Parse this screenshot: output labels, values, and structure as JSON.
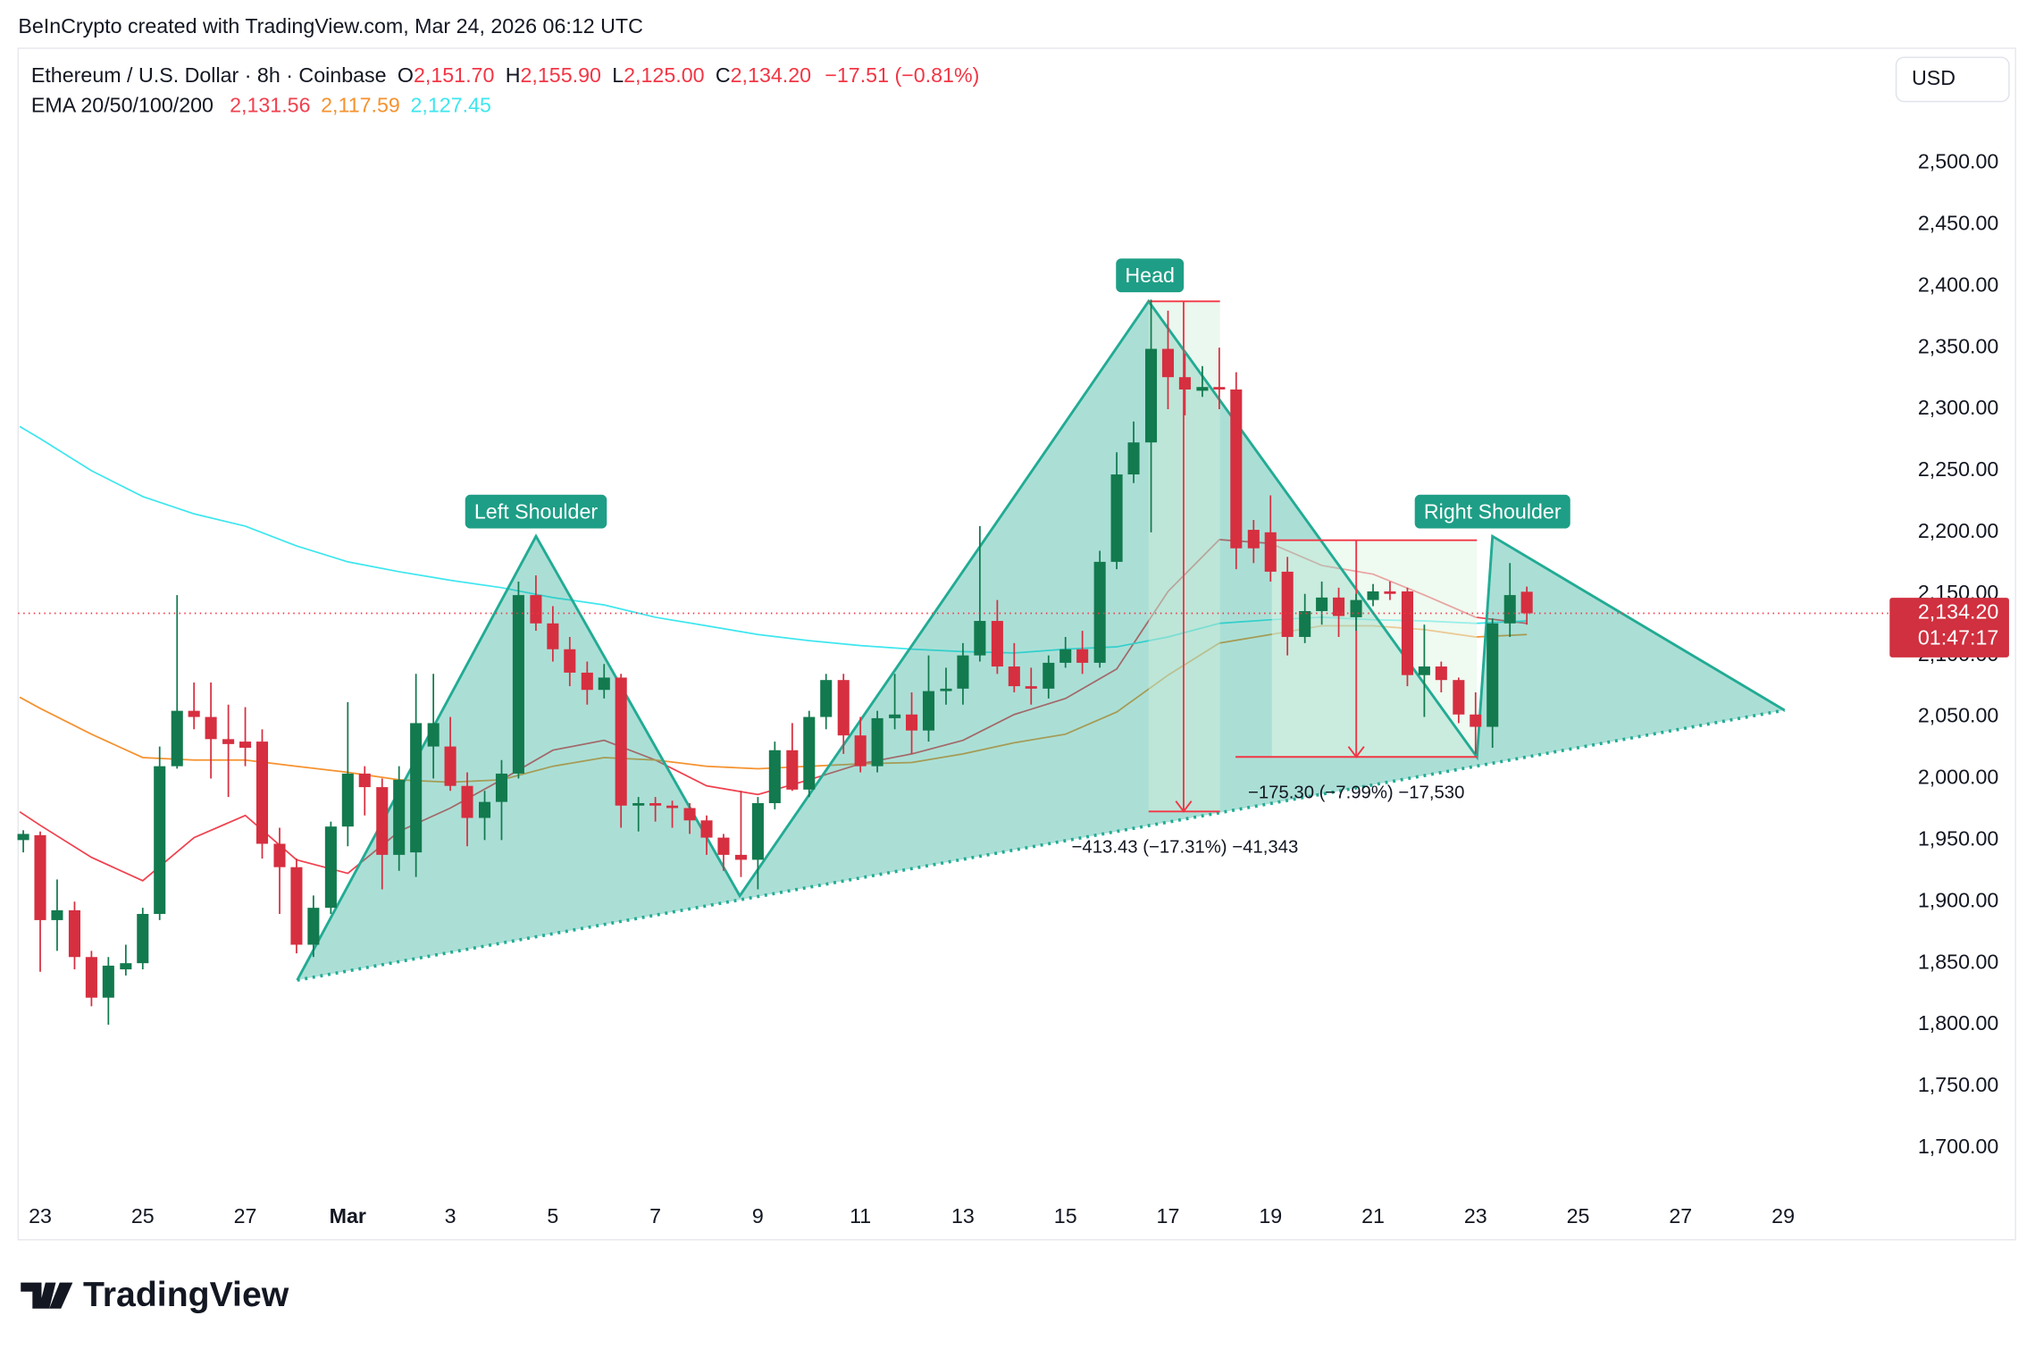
{
  "chart_data": {
    "type": "candlestick",
    "attribution": "BeInCrypto created with TradingView.com, Mar 24, 2026 06:12 UTC",
    "symbol": "Ethereum / U.S. Dollar · 8h · Coinbase",
    "ohlc": [
      {
        "key": "O",
        "value": "2,151.70"
      },
      {
        "key": "H",
        "value": "2,155.90"
      },
      {
        "key": "L",
        "value": "2,125.00"
      },
      {
        "key": "C",
        "value": "2,134.20"
      }
    ],
    "change": "−17.51 (−0.81%)",
    "currency": "USD",
    "brand": "TradingView",
    "up_color": "#127a4e",
    "down_color": "#d62f40",
    "x": [
      -0.33,
      0,
      0.33,
      0.67,
      1,
      1.33,
      1.67,
      2,
      2.33,
      2.67,
      3,
      3.33,
      3.67,
      4,
      4.33,
      4.67,
      5,
      5.33,
      5.67,
      6,
      6.33,
      6.67,
      7,
      7.33,
      7.67,
      8,
      8.33,
      8.67,
      9,
      9.33,
      9.67,
      10,
      10.33,
      10.67,
      11,
      11.33,
      11.67,
      12,
      12.33,
      12.67,
      13,
      13.33,
      13.67,
      14,
      14.33,
      14.67,
      15,
      15.33,
      15.67,
      16,
      16.33,
      16.67,
      17,
      17.33,
      17.67,
      18,
      18.33,
      18.67,
      19,
      19.33,
      19.67,
      20,
      20.33,
      20.67,
      21,
      21.33,
      21.67,
      22,
      22.33,
      22.67,
      23,
      23.33,
      23.67,
      24,
      24.33,
      24.67,
      25,
      25.33,
      25.67,
      26,
      26.33,
      26.67,
      27,
      27.33,
      27.67,
      28,
      28.33,
      28.67,
      29
    ],
    "open": [
      1950,
      1954,
      1885,
      1893,
      1855,
      1822,
      1845,
      1850,
      1890,
      2010,
      2055,
      2050,
      2032,
      2030,
      2030,
      1947,
      1928,
      1865,
      1895,
      1961,
      2004,
      1993,
      1938,
      1940,
      2026,
      2026,
      1994,
      1968,
      1981,
      2004,
      2149,
      2126,
      2105,
      2086,
      2072,
      2082,
      1978,
      1980,
      1978,
      1976,
      1966,
      1952,
      1938,
      1934,
      1980,
      2023,
      1991,
      2050,
      2080,
      2035,
      2010,
      2049,
      2052,
      2039,
      2071,
      2073,
      2100,
      2128,
      2091,
      2075,
      2073,
      2094,
      2105,
      2094,
      2176,
      2247,
      2273,
      2349,
      2326,
      2315,
      2318,
      2316,
      2202,
      2200,
      2168,
      2115,
      2136,
      2147,
      2131,
      2145,
      2152,
      2152,
      2084,
      2091,
      2080,
      2052,
      2042,
      2126,
      2151.7
    ],
    "high": [
      1958,
      1957,
      1918,
      1900,
      1860,
      1855,
      1865,
      1895,
      2026,
      2149,
      2078,
      2078,
      2060,
      2058,
      2040,
      1960,
      1935,
      1905,
      1965,
      2062,
      2010,
      2000,
      2010,
      2085,
      2085,
      2050,
      2005,
      1990,
      2015,
      2160,
      2165,
      2140,
      2115,
      2095,
      2093,
      2085,
      1985,
      1985,
      1982,
      1980,
      1970,
      1955,
      1990,
      1985,
      2030,
      2045,
      2055,
      2085,
      2085,
      2050,
      2055,
      2085,
      2070,
      2100,
      2090,
      2110,
      2205,
      2145,
      2110,
      2090,
      2100,
      2115,
      2120,
      2185,
      2265,
      2290,
      2389,
      2380,
      2345,
      2335,
      2350,
      2330,
      2210,
      2230,
      2180,
      2150,
      2160,
      2155,
      2150,
      2158,
      2160,
      2155,
      2125,
      2095,
      2082,
      2070,
      2130,
      2175,
      2155.9
    ],
    "low": [
      1940,
      1843,
      1860,
      1845,
      1815,
      1800,
      1840,
      1845,
      1885,
      2008,
      2040,
      2000,
      1985,
      2010,
      1935,
      1890,
      1858,
      1855,
      1890,
      1945,
      1970,
      1910,
      1925,
      1920,
      2000,
      1990,
      1945,
      1950,
      1950,
      2000,
      2120,
      2095,
      2075,
      2060,
      2065,
      1960,
      1957,
      1965,
      1960,
      1955,
      1938,
      1925,
      1920,
      1910,
      1975,
      1990,
      1985,
      2040,
      2020,
      2005,
      2005,
      2040,
      2020,
      2030,
      2060,
      2060,
      2095,
      2085,
      2070,
      2060,
      2065,
      2090,
      2085,
      2090,
      2170,
      2240,
      2200,
      2300,
      2295,
      2310,
      2300,
      2170,
      2175,
      2160,
      2100,
      2110,
      2125,
      2115,
      2120,
      2140,
      2145,
      2075,
      2050,
      2070,
      2045,
      2020,
      2025,
      2115,
      2125
    ],
    "close": [
      1955,
      1885,
      1893,
      1855,
      1822,
      1848,
      1850,
      1890,
      2010,
      2055,
      2050,
      2032,
      2028,
      2025,
      1947,
      1928,
      1865,
      1895,
      1961,
      2004,
      1993,
      1938,
      1999,
      2045,
      2045,
      1994,
      1968,
      1981,
      2004,
      2149,
      2126,
      2105,
      2086,
      2072,
      2082,
      1978,
      1980,
      1978,
      1976,
      1966,
      1952,
      1938,
      1934,
      1980,
      2023,
      1991,
      2050,
      2080,
      2035,
      2010,
      2049,
      2052,
      2039,
      2071,
      2073,
      2100,
      2128,
      2091,
      2075,
      2073,
      2094,
      2105,
      2094,
      2176,
      2247,
      2273,
      2349,
      2326,
      2316,
      2318,
      2316,
      2187,
      2187,
      2168,
      2115,
      2136,
      2147,
      2132,
      2145,
      2152,
      2150,
      2084,
      2091,
      2080,
      2052,
      2042,
      2126,
      2149,
      2134.2
    ],
    "indicator": {
      "label": "EMA 20/50/100/200",
      "x": [
        -0.4,
        0,
        1,
        2,
        3,
        4,
        5,
        6,
        7,
        8,
        9,
        10,
        11,
        12,
        13,
        14,
        15,
        16,
        17,
        18,
        19,
        20,
        21,
        22,
        23,
        24,
        25,
        26,
        27,
        28,
        29
      ],
      "lines": [
        {
          "color": "#f0414f",
          "last_label": "2,131.56",
          "values": [
            1973,
            1962,
            1936,
            1917,
            1952,
            1970,
            1934,
            1923,
            1957,
            1976,
            1999,
            2023,
            2031,
            2015,
            1994,
            1987,
            1999,
            2012,
            2020,
            2031,
            2052,
            2065,
            2089,
            2152,
            2194,
            2191,
            2173,
            2166,
            2149,
            2131,
            2126
          ]
        },
        {
          "color": "#f5922f",
          "last_label": "2,117.59",
          "values": [
            2066,
            2057,
            2036,
            2017,
            2015,
            2015,
            2010,
            2005,
            1999,
            1997,
            1999,
            2010,
            2017,
            2015,
            2010,
            2008,
            2010,
            2012,
            2013,
            2020,
            2029,
            2036,
            2054,
            2084,
            2110,
            2117,
            2124,
            2124,
            2121,
            2115,
            2117
          ]
        },
        {
          "color": "#3ee6ee",
          "last_label": "2,127.45",
          "values": [
            2286,
            2276,
            2250,
            2229,
            2215,
            2205,
            2189,
            2176,
            2168,
            2161,
            2155,
            2147,
            2141,
            2131,
            2124,
            2117,
            2112,
            2108,
            2105,
            2103,
            2102,
            2105,
            2107,
            2115,
            2126,
            2129,
            2131,
            2129,
            2128,
            2126,
            2128
          ]
        }
      ]
    },
    "last_price": {
      "value": 2134.2,
      "label": "2,134.20"
    },
    "countdown": "01:47:17",
    "pattern_labels": [
      "Left Shoulder",
      "Head",
      "Right Shoulder"
    ],
    "measurements": [
      "−413.43 (−17.31%) −41,343",
      "−175.30 (−7.99%) −17,530"
    ],
    "xlim": [
      -0.43,
      35.9
    ],
    "ylim": [
      1657,
      2590
    ],
    "xticks": [
      {
        "value": 0,
        "label": "23"
      },
      {
        "value": 2,
        "label": "25"
      },
      {
        "value": 4,
        "label": "27"
      },
      {
        "value": 6,
        "label": "Mar"
      },
      {
        "value": 8,
        "label": "3"
      },
      {
        "value": 10,
        "label": "5"
      },
      {
        "value": 12,
        "label": "7"
      },
      {
        "value": 14,
        "label": "9"
      },
      {
        "value": 16,
        "label": "11"
      },
      {
        "value": 18,
        "label": "13"
      },
      {
        "value": 20,
        "label": "15"
      },
      {
        "value": 22,
        "label": "17"
      },
      {
        "value": 24,
        "label": "19"
      },
      {
        "value": 26,
        "label": "21"
      },
      {
        "value": 28,
        "label": "23"
      },
      {
        "value": 30,
        "label": "25"
      },
      {
        "value": 32,
        "label": "27"
      },
      {
        "value": 34,
        "label": "29"
      }
    ],
    "yticks": [
      {
        "value": 1700,
        "label": "1,700.00"
      },
      {
        "value": 1750,
        "label": "1,750.00"
      },
      {
        "value": 1800,
        "label": "1,800.00"
      },
      {
        "value": 1850,
        "label": "1,850.00"
      },
      {
        "value": 1900,
        "label": "1,900.00"
      },
      {
        "value": 1950,
        "label": "1,950.00"
      },
      {
        "value": 2000,
        "label": "2,000.00"
      },
      {
        "value": 2050,
        "label": "2,050.00"
      },
      {
        "value": 2100,
        "label": "2,100.00"
      },
      {
        "value": 2150,
        "label": "2,150.00"
      },
      {
        "value": 2200,
        "label": "2,200.00"
      },
      {
        "value": 2250,
        "label": "2,250.00"
      },
      {
        "value": 2300,
        "label": "2,300.00"
      },
      {
        "value": 2350,
        "label": "2,350.00"
      },
      {
        "value": 2400,
        "label": "2,400.00"
      },
      {
        "value": 2450,
        "label": "2,450.00"
      },
      {
        "value": 2500,
        "label": "2,500.00"
      }
    ],
    "grid": false
  }
}
